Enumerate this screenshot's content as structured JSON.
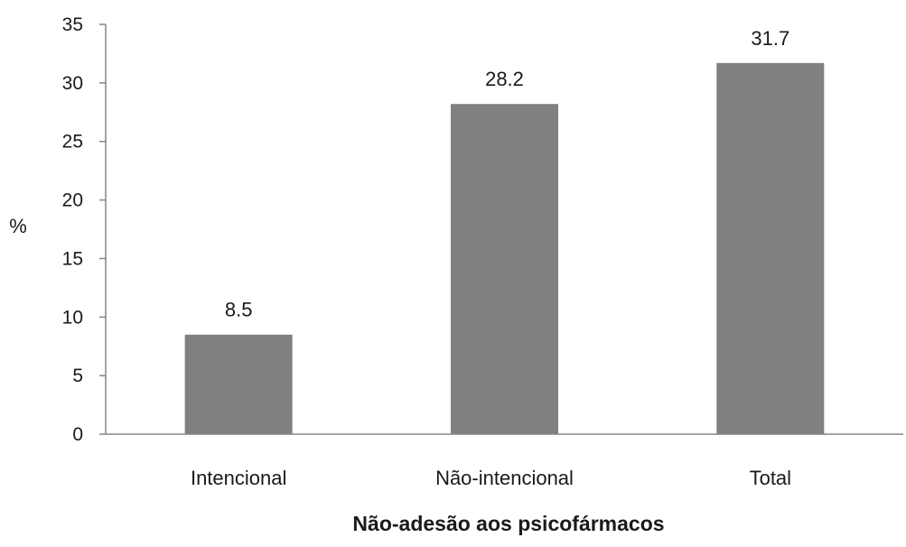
{
  "chart_data": {
    "type": "bar",
    "categories": [
      "Intencional",
      "Não-intencional",
      "Total"
    ],
    "values": [
      8.5,
      28.2,
      31.7
    ],
    "data_labels": [
      "8.5",
      "28.2",
      "31.7"
    ],
    "title": "",
    "xlabel": "Não-adesão aos psicofármacos",
    "ylabel": "%",
    "ylim": [
      0,
      35
    ],
    "yticks": [
      0,
      5,
      10,
      15,
      20,
      25,
      30,
      35
    ],
    "ytick_labels": [
      "0",
      "5",
      "10",
      "15",
      "20",
      "25",
      "30",
      "35"
    ],
    "grid": false,
    "legend": "none",
    "bar_color": "#808080",
    "axis_color": "#868686"
  }
}
